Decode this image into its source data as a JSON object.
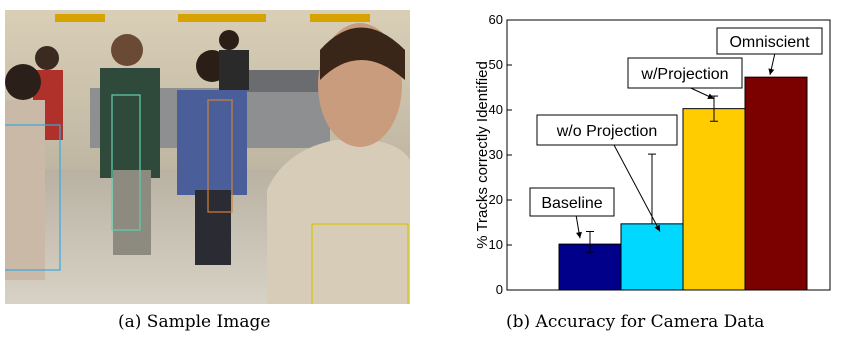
{
  "captions": {
    "a": "(a) Sample Image",
    "b": "(b) Accuracy for Camera Data"
  },
  "chart_data": {
    "type": "bar",
    "title": "",
    "xlabel": "",
    "ylabel": "% Tracks correctly Identified",
    "ylim": [
      0,
      60
    ],
    "yticks": [
      0,
      10,
      20,
      30,
      40,
      50,
      60
    ],
    "grid": false,
    "legend": "none",
    "categories": [
      "Baseline",
      "w/o Projection",
      "w/Projection",
      "Omniscient"
    ],
    "values": [
      10.2,
      14.7,
      40.3,
      47.3
    ],
    "error_low": [
      1.8,
      0,
      2.8,
      0
    ],
    "error_high": [
      2.8,
      15.5,
      2.8,
      0
    ],
    "colors": [
      "#00008b",
      "#00d8ff",
      "#ffcc00",
      "#7b0000"
    ]
  }
}
